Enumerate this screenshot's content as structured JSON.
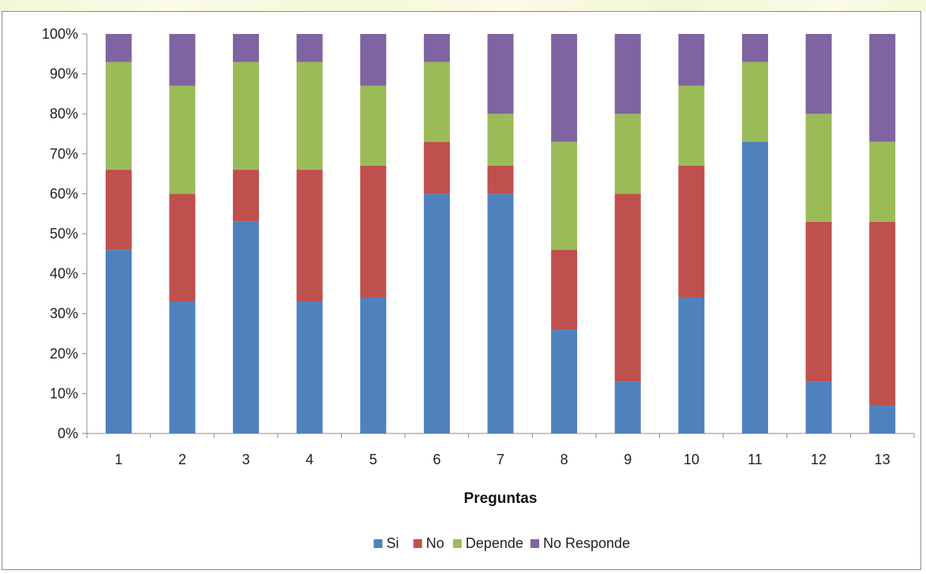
{
  "chart_data": {
    "type": "bar",
    "stacked": true,
    "percent_stacked": true,
    "categories": [
      "1",
      "2",
      "3",
      "4",
      "5",
      "6",
      "7",
      "8",
      "9",
      "10",
      "11",
      "12",
      "13"
    ],
    "series": [
      {
        "name": "Si",
        "color": "#4f81bd",
        "values": [
          46,
          33,
          53,
          33,
          34,
          60,
          60,
          26,
          13,
          34,
          73,
          13,
          7
        ]
      },
      {
        "name": "No",
        "color": "#c0504d",
        "values": [
          20,
          27,
          13,
          33,
          33,
          13,
          7,
          20,
          47,
          33,
          0,
          40,
          46
        ]
      },
      {
        "name": "Depende",
        "color": "#9bbb59",
        "values": [
          27,
          27,
          27,
          27,
          20,
          20,
          13,
          27,
          20,
          20,
          20,
          27,
          20
        ]
      },
      {
        "name": "No Responde",
        "color": "#8064a2",
        "values": [
          7,
          13,
          7,
          7,
          13,
          7,
          20,
          27,
          20,
          13,
          7,
          20,
          27
        ]
      }
    ],
    "title": "",
    "xlabel": "Preguntas",
    "ylabel": "",
    "ylim": [
      0,
      100
    ],
    "yticks": [
      "0%",
      "10%",
      "20%",
      "30%",
      "40%",
      "50%",
      "60%",
      "70%",
      "80%",
      "90%",
      "100%"
    ],
    "grid": false,
    "legend_position": "bottom"
  }
}
